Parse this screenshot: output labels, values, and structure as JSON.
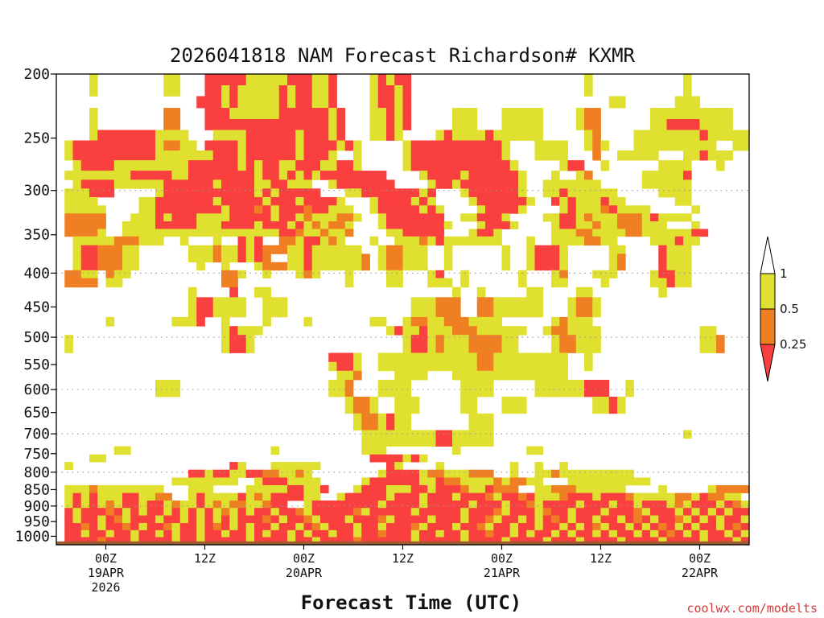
{
  "chart_data": {
    "type": "heatmap",
    "title": "2026041818 NAM Forecast Richardson# KXMR",
    "xlabel": "Forecast Time (UTC)",
    "ylabel": "",
    "credit": "coolwx.com/modelts",
    "y_axis": {
      "unit": "hPa",
      "scale": "log",
      "ylim": [
        1030,
        200
      ],
      "ticks": [
        200,
        250,
        300,
        350,
        400,
        450,
        500,
        550,
        600,
        650,
        700,
        750,
        800,
        850,
        900,
        950,
        1000
      ],
      "dotted_gridlines": [
        300,
        400,
        500,
        600,
        700,
        800,
        900
      ]
    },
    "x_axis": {
      "unit": "hours from 2026-04-18 18Z",
      "xlim": [
        0,
        84
      ],
      "ticks": [
        {
          "hour": 6,
          "lines": [
            "00Z",
            "19APR",
            "2026"
          ]
        },
        {
          "hour": 18,
          "lines": [
            "12Z"
          ]
        },
        {
          "hour": 30,
          "lines": [
            "00Z",
            "20APR"
          ]
        },
        {
          "hour": 42,
          "lines": [
            "12Z"
          ]
        },
        {
          "hour": 54,
          "lines": [
            "00Z",
            "21APR"
          ]
        },
        {
          "hour": 66,
          "lines": [
            "12Z"
          ]
        },
        {
          "hour": 78,
          "lines": [
            "00Z",
            "22APR"
          ]
        }
      ]
    },
    "legend": {
      "position": "right",
      "boundaries": [
        "1",
        "0.5",
        "0.25"
      ],
      "bins": [
        {
          "range": "> 1",
          "color": "#ffffff"
        },
        {
          "range": "0.5 - 1",
          "color": "#e0e030"
        },
        {
          "range": "0.25 - 0.5",
          "color": "#ef7f22"
        },
        {
          "range": "< 0.25",
          "color": "#fa3f3f"
        }
      ]
    },
    "colors": {
      "lt1": "#e0e030",
      "lt05": "#ef7f22",
      "lt025": "#fa3f3f",
      "ground": "#9b5a2f"
    },
    "ground_level_hpa": 1018,
    "layers_rle": [
      {
        "p": 200,
        "runs": "0:4 4:1:1 5:8 13:2:1 15:3 18:5:3 23:5:1 28:2:3 30:1:3 31:2:1 33:1:3 34:4 38:1:1 39:1:3 40:1:1 41:2:3 43:21 64:1:1 65:11 76:1:1 77:7"
      },
      {
        "p": 208,
        "runs": "0:4 4:1:1 5:8 13:2:1 15:3 18:2:3 20:1:1 21:1:3 22:1:1 23:4:1 27:1:3 28:1:1 29:2:3 31:2:1 33:1:3 34:4 38:1:1 39:2:3 41:1:1 42:1:3 43:21 64:1:1 65:11 76:1:1 77:7"
      },
      {
        "p": 216,
        "runs": "0:17 17:1:3 18:2:3 20:1:1 21:1:3 22:1:1 23:4:1 27:1:3 28:1:1 29:2:3 31:2:1 33:1:3 34:4 38:1:1 39:2:3 41:1:1 42:1:3 43:24 67:2:1 69:6 75:1:1 76:2:1 78:6"
      },
      {
        "p": 225,
        "runs": "0:4 4:1:1 5:8 13:2:2 15:3 18:3:3 21:6:1 27:2:3 29:3:3 32:1:3 33:1:1 34:1:3 35:3 38:2:1 40:1:3 41:1:1 42:1:3 43:5 48:1:1 49:2:1 51:3 54:2:1 56:2:1 58:1:1 59:4 63:1:1 64:1:2 65:1:2 66:6 72:2:1 74:4:1 78:4:1 80:1:1 81:3"
      },
      {
        "p": 234,
        "runs": "0:4 4:1:1 5:8 13:2:2 15:3 18:3:3 21:6:3 27:2:3 29:3:3 32:1:3 33:1:1 34:1:3 35:3 38:2:1 40:1:3 41:1:1 42:1:3 43:5 48:1:1 49:2:1 51:3 54:2:1 56:2:1 58:1:1 59:4 63:1:1 64:1:2 65:1:2 66:6 72:2:1 74:4:3 78:4:1 80:1:1 81:3"
      },
      {
        "p": 243,
        "runs": "0:4 4:1:1 5:1:3 6:6:3 12:4:1 16:3 19:1:1 20:2:1 22:1:1 23:6:3 29:1:1 30:3:3 33:1:1 34:1:3 35:3 38:2:1 40:1:3 41:1:1 42:4 46:1:1 47:1:3 48:1:1 49:1:1 50:2:1 52:1:3 53:2:1 55:2:1 57:2:1 59:5 64:1:1 65:1:2 66:4 70:1:1 71:3:1 74:1:1 75:3:1 78:1:3 79:4:1 83:1:1"
      },
      {
        "p": 252,
        "runs": "0:1 1:1:1 2:10:3 12:1:1 13:2:2 15:2:1 17:1 18:1:3 19:3:3 22:1:1 23:3:3 26:3:3 29:1:1 30:4:3 34:1:1 35:1:3 36:1:1 37:5 42:1:1 43:1:3 44:2:3 46:3:3 49:3:3 52:2:3 54:1:1 55:3 58:1:1 59:1:1 60:1:1 61:1:1 62:2 64:1:1 65:1:2 66:1:1 67:3 70:1:1 71:2:1 73:3:1 76:2:1 78:2:1 80:2 82:1:1 83:1:1"
      },
      {
        "p": 261,
        "runs": "0:1 1:1:1 2:10:3 12:3:1 15:4:1 19:3:3 22:1:1 23:3:3 26:3:3 29:1:1 30:2:3 32:1:3 33:1:1 34:2 36:1:1 37:5 42:1:1 43:1:3 44:2:3 46:3:3 49:2:3 51:3:3 54:1:1 55:3 58:1:1 59:1:1 60:1:1 61:1:1 62:3 65:1:2 66:2 68:2:1 70:2:1 72:1:1 73:3 76:1:1 77:1:1 78:1:3 79:2:1 81:1:1 82:2"
      },
      {
        "p": 270,
        "runs": "0:2 2:1:1 3:4:3 7:4:1 11:4:1 15:1:1 16:3:3 19:3:3 22:1:1 23:1:3 24:1:1 25:2:3 27:2:1 29:2:3 31:1:3 32:2:1 34:2:3 36:1:1 37:5 42:1:1 43:1:3 44:3:3 47:3:3 50:3:3 53:2:3 55:1:1 56:5 61:1:1 62:2:3 64:2 66:1:1 67:6 73:1:1 74:3:1 77:3 80:1:1 81:3"
      },
      {
        "p": 280,
        "runs": "0:1 1:1:1 2:1:1 3:1:1 4:1:1 5:3:1 8:1:1 9:1:3 10:4:3 14:1:1 15:1:1 16:2:3 18:4:3 22:2:3 24:1:1 25:2:3 27:1:1 28:1:3 29:1:1 30:1:3 31:1:1 32:2:3 34:2:3 36:3:3 39:1:3 40:4 44:1:1 45:2:3 47:2:3 49:1:1 50:2:3 52:2:3 54:2:3 56:1:1 57:3 60:1:1 61:2 63:1:1 64:1:2 65:4 69:2 71:2:1 73:1:1 74:2:1 76:1:3 77:6"
      },
      {
        "p": 289,
        "runs": "0:2 2:1:1 3:4:3 7:4:1 11:2:1 13:1:3 14:3:3 17:2:3 19:1:1 20:2:3 22:2:3 24:2:1 26:1:3 27:1:3 28:3:1 31:2 33:1:1 34:3:3 37:4:3 41:4 45:1:1 46:2:3 48:1:1 49:3:3 52:1:3 53:3:3 56:1:1 57:2 59:1:1 60:3:1 63:2:1 65:1:1 66:5 71:2:1 73:2:1 75:2:1 77:7"
      },
      {
        "p": 298,
        "runs": "0:1 1:1:1 2:1:1 3:1:1 4:3:3 7:5 12:1:1 13:3:3 16:1:3 17:2:3 19:2:3 21:3:3 24:1:1 25:1:3 26:1:1 27:2:3 29:3:3 32:3 35:1:1 36:1:1 37:2:3 39:2:3 41:3:3 44:1:1 45:1:3 46:3 49:1:1 50:2:3 52:4:3 56:1:1 57:2 59:2:1 61:1:3 62:2:1 64:3:1 67:1:1 68:5 73:1:1 74:2:1 76:1:1 77:7"
      },
      {
        "p": 307,
        "runs": "0:1 1:4:1 5:5 10:1:1 11:1:1 12:2:3 14:3:3 17:2:3 19:1:1 20:3:3 23:2:3 25:1:1 26:1:3 27:2:3 29:1:1 30:2:3 32:2:3 34:1:1 35:3 38:1:1 39:2:3 41:2:3 43:1:1 44:1:3 45:1:1 46:4 50:1:1 51:1:3 52:2:3 54:3:3 57:1:1 58:2 60:1:3 61:1:1 62:1:3 63:2:1 65:1:1 66:1:3 67:2:1 69:6 75:1:1 76:1:1 77:7"
      },
      {
        "p": 316,
        "runs": "0:1 1:5:1 6:4 10:1:1 11:1:1 12:1:3 13:1:3 14:3:3 17:3:3 20:1:1 21:3:3 24:1:2 25:1:3 26:1:1 27:3:3 30:1:2 31:2:3 33:1:1 34:2:1 36:2 38:1:1 39:2:3 41:1:3 42:2:3 44:1:1 45:1:3 46:1:1 47:4 51:1:1 52:2:3 54:2:3 56:1:1 57:4 61:1:1 62:1:3 63:3:1 66:1:2 67:1:3 68:1:1 69:2:1 71:1:1 72:5 77:1:1 78:6"
      },
      {
        "p": 325,
        "runs": "0:1 1:5:2 6:3 9:1:1 10:1:1 11:1:1 12:1:3 13:1:1 14:3:3 17:2:1 19:2:1 21:2:3 23:3:3 26:1:1 27:2:3 29:1:1 30:1:2 31:2:1 33:1:1 34:2:2 36:1:1 37:2 39:1:1 40:2:3 42:4:3 46:1:3 47:2 49:2:1 51:3:3 54:1:1 55:4 59:1:1 60:1:1 61:2:3 63:1:1 64:1:2 65:3:1 68:3:2 71:1:1 72:1:3 73:1:1 74:3:1 77:7"
      },
      {
        "p": 334,
        "runs": "0:1 1:5:2 6:2 8:1:1 9:2:1 11:1:1 12:2:3 14:3:3 17:2:1 19:1:1 20:2:3 22:2:3 24:1:1 25:3:3 28:1:1 29:1:3 30:1:1 31:1:2 32:1:1 33:2:2 35:1:1 36:3 39:1:1 40:2:3 42:2:3 44:3:3 47:1:1 48:3 51:1:1 52:3:3 55:1:1 56:4 60:1:1 61:2:3 63:2:1 65:1:2 66:2:1 68:3:2 71:1:1 72:2:1 74:3 77:1:1 78:6"
      },
      {
        "p": 343,
        "runs": "0:1 1:4:2 5:1:1 6:2 8:1:1 9:1:1 10:1:1 11:2:1 13:3:1 16:3:1 19:3:1 22:3:1 25:2:1 27:2:3 29:1:2 30:2:1 32:1:2 33:2:1 35:1:2 36:4 40:2:1 42:1:3 43:4:3 47:3 50:1:1 51:2:3 53:1:1 54:4 58:2 60:1:1 61:2:1 63:2:2 65:1:1 66:3:1 69:2:2 71:1:1 72:2:1 74:1:1 75:2:1 77:1:3 78:1:3 79:5"
      },
      {
        "p": 352,
        "runs": "0:2 2:1:1 3:1:1 4:1:1 5:1:1 6:1:1 7:1:2 8:2:2 10:1:1 11:2:1 13:2 15:1:1 16:3 19:1:1 20:2 22:1:3 23:1:1 24:1:3 25:2 27:2:2 29:1:1 30:1:3 31:1:3 32:1:1 33:1:2 34:1:1 35:3 38:1:1 39:2 41:2:1 43:1:1 44:1:2 45:1:1 46:1:3 47:1:1 48:2:1 50:3:1 53:1:1 54:3 57:1:1 58:2 60:1:1 61:2:1 63:1:1 64:2:2 66:2:1 68:4 72:1:1 73:1:1 74:1:1 75:1:3 76:2:1 78:6"
      },
      {
        "p": 363,
        "runs": "0:2 2:1:1 3:1:3 4:1:3 5:3:2 8:1:1 9:1:1 10:6 16:1:1 17:1:1 18:1:1 19:1:2 20:1:1 21:1:1 22:1:3 23:1:1 24:1:3 25:3:2 28:2:1 30:1:3 31:3:1 34:1:1 35:1:1 36:1:1 37:2 39:1:1 40:2:2 42:1:1 43:2:1 45:2 47:1:1 48:6 54:1:1 55:2 57:1:1 58:3:3 61:1:1 62:5 67:1:1 68:1:1 69:4 73:1:3 74:1:1 75:1:1 76:1:1 77:7"
      },
      {
        "p": 374,
        "runs": "0:2 2:1:1 3:1:3 4:1:3 5:3:2 8:1:1 9:1:1 10:6 16:1:1 17:1:1 18:1:1 19:1:2 20:1:1 21:1:1 22:1:3 23:1:1 24:1:3 25:1:2 26:2 28:2:1 30:1:3 31:3:1 34:1:1 35:1:1 36:1:1 37:1:2 38:1 39:1:1 40:2:2 42:1:1 43:2:1 45:2 47:1:1 48:6 54:1:1 55:2 57:1:1 58:3:3 61:1:1 62:5 67:1:1 68:1:2 69:4 73:1:3 74:1:1 75:1:1 76:1:1 77:7"
      },
      {
        "p": 385,
        "runs": "0:2 2:1:1 3:1:3 4:1:3 5:3:2 8:1:1 9:1:1 10:7 17:1:1 18:2 20:1:1 21:3 24:1:1 25:3:2 28:2:1 30:1:3 31:3:1 34:1:1 35:1:1 36:1:1 37:1:2 38:1 39:1:1 40:2:2 42:1:1 43:2:1 45:2 47:1:1 48:6 54:1:1 55:2 57:1:1 58:3:3 61:1:1 62:5 67:1:1 68:1:2 69:4 73:1:3 74:1:1 75:1:1 76:1:1 77:7"
      },
      {
        "p": 396,
        "runs": "0:1 1:2:2 3:2:1 5:1 6:1:2 7:2:1 9:11 20:2:2 22:1:1 23:2 25:1:1 26:3 29:1:1 30:1:2 31:1:1 32:3 35:1:1 36:4 40:1:1 41:1:1 42:3 45:1:1 46:1:3 47:2 49:1:1 50:6 56:1:1 57:3 60:1:1 61:1:2 62:3 65:1:1 66:2:1 68:4 72:1:1 73:1:3 74:1:3 75:1:1 76:1:1 77:7"
      },
      {
        "p": 407,
        "runs": "0:1 1:2:2 3:2:2 5:1 6:1:1 7:1:1 8:12 20:2:2 22:10 32:3 35:1:1 36:4 40:1:1 41:1:1 42:3 45:1:1 46:1:1 47:1:1 48:1 49:1:1 50:6 56:1:1 57:3 60:1:1 61:1:1 62:4 66:1:1 67:5 72:1:1 73:1:1 74:1:3 75:1:1 76:1:1 77:7"
      },
      {
        "p": 420,
        "runs": "0:16 16:1:1 17:4 21:1:3 22:2 24:1:1 25:1:1 26:22 48:1:1 49:2 51:1:1 52:5 57:1:1 58:1:1 59:4 63:1:1 64:1:1 65:8 73:1:1 74:10"
      },
      {
        "p": 435,
        "runs": "0:16 16:1:1 17:1:3 18:1:3 19:1:1 20:1:1 21:1:1 22:1:1 23:2 25:1:1 26:1:1 27:1:1 28:15 43:1:1 44:1:1 45:1:1 46:1:2 47:2:2 49:2 51:2:2 53:1:1 54:1:1 55:1:1 56:1:1 57:1:1 58:1:1 59:3 62:1:1 63:2:2 65:1:1 66:17"
      },
      {
        "p": 450,
        "runs": "0:16 16:1:1 17:1:3 18:1:3 19:1:1 20:1:1 21:1:1 22:1:1 23:2 25:1:1 26:1:1 27:1:1 28:15 43:1:1 44:1:1 45:1:1 46:1:2 47:2:2 49:2 51:2:2 53:1:1 54:1:1 55:1:1 56:1:1 57:1:1 58:1:1 59:3 62:1:1 63:2:2 65:1:1 66:17"
      },
      {
        "p": 466,
        "runs": "0:6 6:1:1 7:7 14:1:1 15:1:1 16:1:1 17:1:3 18:2 20:1:1 21:4 25:1:1 26:4 30:1:1 31:7 38:1:1 39:1:1 40:2 42:1:1 43:1:2 44:1:2 45:2:1 47:1:2 48:2:2 50:1:1 51:1:1 52:1:1 53:1:1 54:6 60:1:1 61:1:2 62:2:1 64:1:1 65:18"
      },
      {
        "p": 481,
        "runs": "0:20 20:1:1 21:1:3 22:1:1 23:1:1 24:1:1 25:15 40:1:1 41:1:3 42:1:1 43:1:1 44:1:3 45:2:1 47:1:1 48:3:2 51:1:1 52:2:1 54:1:1 55:2:1 57:2 59:1:1 60:2:2 62:3:1 65:1:1 66:12 78:1:1 79:1:1 80:3"
      },
      {
        "p": 496,
        "runs": "0:1 1:1:1 2:18 20:1:1 21:1:3 22:1:3 23:1:1 24:18 42:1:1 43:1:3 44:1:3 45:1:1 46:1:2 47:1:1 48:1:1 49:1:1 50:3:2 53:1:2 54:2:1 56:4 60:1:1 61:2:2 63:2:1 65:1:1 66:12 78:1:1 79:1:1 80:1:2 81:2"
      },
      {
        "p": 512,
        "runs": "0:1 1:1:1 2:18 20:1:1 21:1:3 22:1:3 23:1:1 24:18 42:1:1 43:1:3 44:1:3 45:1:1 46:1:2 47:1:1 48:1:1 49:1:1 50:3:2 53:1:2 54:2:1 56:4 60:1:1 61:2:2 63:2:1 65:1:1 66:12 78:1:1 79:1:1 80:1:2 81:2"
      },
      {
        "p": 528,
        "runs": "0:33 33:1:3 34:2:3 36:1:1 37:2 39:1:1 40:2:1 42:1:1 43:1:1 44:1:1 45:1:1 46:1:1 47:3:1 50:1:1 51:1:2 52:1:2 53:2:1 55:1:1 56:3:1 59:1:1 60:2:1 62:2 64:1:1 65:18"
      },
      {
        "p": 545,
        "runs": "0:33 33:1:1 34:2:3 36:1:1 37:2 39:1:1 40:2:1 42:1:1 43:1:1 44:1:1 45:1:1 46:1:1 47:3:1 50:1:1 51:1:2 52:1:2 53:2:1 55:1:1 56:3:1 59:1:1 60:2:1 62:2 64:1:1 65:18"
      },
      {
        "p": 562,
        "runs": "0:34 34:1:1 35:1:1 36:1:2 37:4 41:1:1 42:3:1 45:3 48:1:1 49:3:1 52:1:1 53:2:1 55:1:1 56:2:1 58:1:1 59:2:1 61:1:1 62:21"
      },
      {
        "p": 580,
        "runs": "0:12 12:3:1 15:18 33:1:1 34:1:1 35:1:2 36:3 39:1:1 40:1:1 41:1:1 42:1:1 43:6 49:1:1 50:3:1 53:5 58:1:1 59:1:1 60:1:1 61:2:1 63:1:1 64:3:3 67:2 69:1:1 70:14"
      },
      {
        "p": 597,
        "runs": "0:12 12:3:1 15:18 33:1:1 34:1:1 35:1:2 36:3 39:1:1 40:1:1 41:1:1 42:1:1 43:6 49:1:1 50:3:1 53:5 58:1:1 59:1:1 60:1:1 61:2:1 63:1:1 64:3:3 67:2 69:1:1 70:14"
      },
      {
        "p": 615,
        "runs": "0:35 35:1:1 36:1:2 37:1:2 38:1:1 39:2 41:1:1 42:2:1 44:5 49:1:1 50:1:1 51:3 54:1:1 55:2:1 57:8 65:1:1 66:1:1 67:1:3 68:1:1 69:14"
      },
      {
        "p": 634,
        "runs": "0:35 35:1:1 36:1:2 37:1:2 38:1:1 39:2 41:1:1 42:2:1 44:5 49:1:1 50:1:1 51:3 54:1:1 55:2:1 57:8 65:1:1 66:1:1 67:1:3 68:1:1 69:14"
      },
      {
        "p": 652,
        "runs": "0:36 36:1:1 37:1:2 38:1:2 39:1:1 40:1:3 41:1:1 42:1:1 43:7 50:1:1 51:1:1 52:1:1 53:30"
      },
      {
        "p": 672,
        "runs": "0:36 36:1:1 37:1:2 38:1:2 39:1:1 40:1:3 41:1:1 42:1:1 43:7 50:1:1 51:1:1 52:1:1 53:30"
      },
      {
        "p": 691,
        "runs": "0:37 37:1:1 38:1:1 39:1:1 40:1:1 41:2:1 43:1:1 44:1:1 45:1:1 46:1:3 47:1:3 48:1:1 49:1:1 50:1:1 51:1:1 52:1:1 53:23 76:1:1 77:6"
      },
      {
        "p": 711,
        "runs": "0:37 37:1:1 38:1:1 39:1:1 40:1:1 41:2:1 43:1:1 44:1:1 45:1:1 46:1:3 47:1:3 48:1:1 49:1:1 50:1:1 51:1:1 52:1:1 53:31"
      },
      {
        "p": 731,
        "runs": "0:7 7:1:1 8:1:1 9:17 26:1:1 27:10 37:1:1 38:1:1 39:1:1 40:8 48:1:1 49:8 57:1:1 58:1:1 59:25"
      },
      {
        "p": 752,
        "runs": "0:4 4:1:1 5:1:1 6:32 38:1:3 39:1:3 40:1:3 41:1:3 42:1:1 43:1:3 44:1:1 45:39"
      },
      {
        "p": 772,
        "runs": "0:1 1:1:1 2:19 21:1:3 22:1:1 23:3 26:1:1 27:1:1 28:1:1 29:1:1 30:1:1 31:1:1 32:8 40:1:3 41:1:1 42:4 46:1:1 47:8 55:1:1 56:2 58:1:1 59:2 61:1:1 62:21"
      },
      {
        "p": 793,
        "runs": "0:16 16:1:3 17:1:3 18:1:1 19:1:3 20:1:3 21:1:1 22:1:1 23:1:3 24:1:3 25:1:2 26:1:2 27:1:1 28:1:1 29:1:2 30:1:1 31:8 39:1:1 40:2:3 42:2:3 44:1:1 45:2:2 47:1:1 48:1:1 49:1:1 50:1:2 51:2:2 53:2 55:1:1 56:2 58:1:1 59:1:1 60:1:2 61:1:1 62:1:1 63:2:1 65:1:1 66:4:1 70:14"
      },
      {
        "p": 815,
        "runs": "0:14 14:3:1 17:1:1 18:1:1 19:2:1 21:1:1 22:2 24:1:1 25:1:3 26:2:3 28:1:1 29:1:1 30:1:1 31:1:1 32:5 37:1:1 38:3:3 41:3:3 44:2:1 46:1:3 47:2:2 49:1:1 50:2:1 52:1:1 53:1:2 54:1:1 55:2:2 57:2:1 59:3 62:2:1 64:3:1 67:4:1 71:1:1 72:11"
      },
      {
        "p": 837,
        "runs": "0:1 1:1:1 2:2:1 4:1:2 5:1:1 6:2:1 8:1:1 9:1:1 10:2:1 12:1:1 13:3 16:1:1 17:1:1 18:1:1 19:4 23:1:1 24:1:1 25:1:1 26:1:1 27:1:1 28:2:3 30:1:1 31:1:1 32:1:3 33:3 36:1:1 37:2:3 39:1:3 40:1:1 41:1:1 42:1:1 43:2:3 45:1:1 46:3:3 49:1:2 50:1:1 51:1:1 52:1:3 53:1:2 54:2:2 56:2 58:1:1 59:1:1 60:1:2 61:2:2 63:1:1 64:1:1 65:1:1 66:1:1 67:1:1 68:1:1 69:4 73:1:1 74:5 79:1:1 80:4:2"
      },
      {
        "p": 860,
        "runs": "0:1 1:1:1 2:1:3 3:1:1 4:1:3 5:3:1 8:2:3 10:1:1 11:1:1 12:2:2 14:2 16:1:1 17:1:3 18:2:1 20:1:1 21:1:1 22:1:3 23:1:1 24:1:2 25:1:1 26:2:3 28:2:3 30:2:1 32:2 34:1:1 35:3:3 38:2:3 40:1:1 41:1:3 42:2:3 44:1:1 45:1:3 46:2:3 48:1:1 49:3:3 52:1:2 53:1:1 54:1:3 55:1:3 56:1:2 57:1:3 58:1:1 59:1:1 60:1:1 61:1:2 62:1:3 63:2:3 65:1:1 66:1:3 67:1:3 68:1:3 69:1:2 70:1:1 71:2:1 73:2:1 75:2:2 77:1:1 78:1:3 79:2:2 81:2:1"
      },
      {
        "p": 883,
        "runs": "0:1 1:1:1 2:1:3 3:1:1 4:1:3 5:1:1 6:1:2 7:1:1 8:2:3 10:1:1 11:1:3 12:1:3 13:1:1 14:1:2 15:1:1 16:1:1 17:1:3 18:1:1 19:1:2 20:1:1 21:1:2 22:1:2 23:1:1 24:1:1 25:1:2 26:1:3 27:1:3 28:2 30:1:1 31:1:3 32:1:3 33:2:3 35:2:3 37:2:3 39:1:1 40:3:3 43:1:3 44:1:1 45:3:3 48:2:3 50:1:1 51:3:3 54:1:1 55:2:3 57:1:2 58:1:1 59:1:3 60:3:3 63:1:1 64:1:3 65:2:3 67:1:1 68:2:3 70:1:1 71:3:3 74:1:1 75:1:2 76:1:1 77:1:3 78:2:3 80:1:1 81:1:3 82:1:2 83:1:1"
      },
      {
        "p": 906,
        "runs": "0:1 1:1:3 2:1:1 3:1:3 4:2:3 6:1:2 7:1:3 8:1:1 9:1:3 10:1:1 11:2:3 13:1:1 14:1:3 15:1:1 16:1:3 17:1:1 18:1:3 19:1:1 20:1:2 21:1:1 22:1:3 23:1:1 24:1:3 25:1:3 26:1:1 27:1:3 28:1:3 29:1:2 30:1:1 31:2:3 33:3:3 36:1:2 37:1:1 38:2:3 40:3:3 43:1:1 44:2:3 46:3:3 49:1:1 50:3:3 53:1:2 54:1:1 55:2:3 57:1:3 58:1:1 59:1:2 60:2:3 62:1:1 63:3:3 66:1:1 67:3:3 70:1:2 71:1:1 72:1:3 73:2:3 75:1:1 76:1:3 77:1:1 78:1:3 79:1:1 80:1:3 81:1:1 82:2:3"
      },
      {
        "p": 930,
        "runs": "0:1 1:1:3 2:1:1 3:2:3 5:1:1 6:1:3 7:1:2 8:1:1 9:3:3 12:1:1 13:2:3 15:1:1 16:1:3 17:1:1 18:1:3 19:1:1 20:1:3 21:1:1 22:1:3 23:2:3 25:1:2 26:1:3 27:1:1 28:2:3 30:1:2 31:1:1 32:1:3 33:2:3 35:1:1 36:3:3 39:1:2 40:1:1 41:3:3 44:1:3 45:1:1 46:3:3 49:1:1 50:2:3 52:1:2 53:1:1 54:2:3 56:1:1 57:1:3 58:1:1 59:1:3 60:1:2 61:1:3 62:1:1 63:2:3 65:1:1 66:2:3 68:1:1 69:1:3 70:1:2 71:1:3 72:1:1 73:1:3 74:1:3 75:1:2 76:1:1 77:1:3 78:1:1 79:1:3 80:1:1 81:1:3 82:1:3 83:1:1"
      },
      {
        "p": 955,
        "runs": "0:1 1:2:3 3:1:2 4:1:3 5:1:1 6:2:3 8:1:2 9:1:3 10:1:1 11:2:3 13:1:2 14:1:1 15:1:3 16:1:3 17:1:1 18:1:3 19:1:2 20:1:3 21:1:1 22:1:3 23:1:1 24:1:3 25:1:3 26:1:1 27:1:3 28:1:3 29:1:1 30:1:3 31:1:2 32:1:1 33:3:3 36:1:1 37:2:3 39:1:1 40:3:3 43:1:2 44:1:1 45:3:3 48:1:1 49:2:3 51:1:2 52:1:1 53:2:3 55:1:1 56:1:3 57:1:3 58:1:1 59:1:3 60:1:3 61:1:1 62:1:3 63:1:1 64:1:3 65:1:2 66:1:1 67:1:3 68:1:3 69:1:1 70:1:3 71:1:1 72:1:3 73:1:2 74:1:3 75:1:1 76:1:3 77:1:1 78:1:3 79:1:3 80:1:1 81:1:3 82:1:2 83:1:3"
      },
      {
        "p": 979,
        "runs": "0:1 1:2:3 3:1:1 4:1:3 5:1:3 6:1:1 7:2:3 9:1:1 10:1:3 11:1:3 12:1:1 13:1:3 14:1:1 15:2:3 17:1:1 18:1:3 19:1:3 20:1:1 21:1:3 22:1:3 23:1:1 24:1:3 25:1:1 26:1:3 27:1:3 28:1:1 29:1:3 30:1:1 31:1:3 32:1:3 33:1:1 34:2:3 36:1:1 37:2:3 39:1:2 40:3:3 43:1:1 44:2:3 46:1:1 47:2:3 49:1:1 50:2:3 52:1:2 53:2:3 55:1:1 56:1:3 57:1:1 58:1:3 59:1:3 60:1:1 61:1:3 62:1:1 63:1:3 64:1:3 65:1:1 66:1:3 67:1:1 68:1:3 69:1:3 70:1:1 71:1:3 72:1:1 73:1:3 74:1:2 75:1:3 76:1:1 77:1:3 78:1:1 79:1:3 80:1:3 81:1:1 82:1:3 83:1:1"
      },
      {
        "p": 1003,
        "runs": "0:1 1:2:3 3:2:3 5:1:2 6:2:3 8:1:3 9:1:1 10:2:3 12:1:3 13:1:3 14:1:1 15:2:3 17:1:1 18:2:3 20:1:3 21:2:3 23:1:1 24:2:3 26:2:3 28:1:1 29:1:3 30:1:3 31:1:1 32:1:3 33:3:3 36:1:2 37:3:3 40:3:3 43:1:1 44:3:3 47:2:3 49:1:1 50:3:3 53:1:3 54:1:1 55:2:3 57:2:3 59:1:1 60:2:3 62:1:3 63:1:1 64:2:3 66:2:3 68:1:1 69:2:3 71:2:3 73:1:1 74:2:3 76:2:3 78:1:1 79:2:3 81:1:3 82:1:1 83:1:3"
      },
      {
        "p": 1018,
        "runs": "0:84:3"
      }
    ]
  }
}
